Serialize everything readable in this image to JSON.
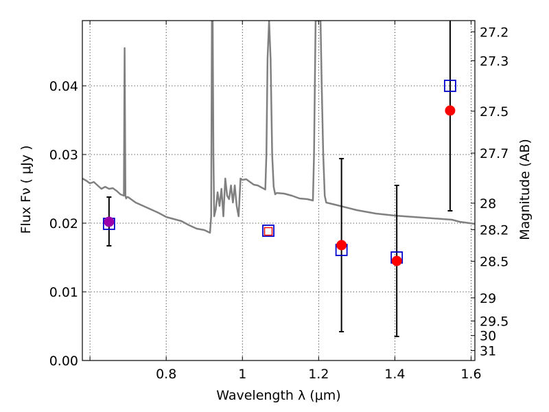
{
  "chart_data": {
    "type": "scatter",
    "title": "",
    "xlabel": "Wavelength  λ (μm)",
    "ylabel": "Flux  Fν  ( μJy )",
    "ylabel_right": "Magnitude (AB)",
    "xlim": [
      0.58,
      1.61
    ],
    "ylim": [
      0.0,
      0.0495
    ],
    "grid": true,
    "x_ticks": [
      {
        "value": 0.6,
        "label": ""
      },
      {
        "value": 0.8,
        "label": "0.8"
      },
      {
        "value": 1.0,
        "label": "1"
      },
      {
        "value": 1.2,
        "label": "1.2"
      },
      {
        "value": 1.4,
        "label": "1.4"
      },
      {
        "value": 1.6,
        "label": "1.6"
      }
    ],
    "y_ticks": [
      {
        "value": 0.0,
        "label": "0.00"
      },
      {
        "value": 0.01,
        "label": "0.01"
      },
      {
        "value": 0.02,
        "label": "0.02"
      },
      {
        "value": 0.03,
        "label": "0.03"
      },
      {
        "value": 0.04,
        "label": "0.04"
      }
    ],
    "right_ticks": [
      {
        "value": 27.2,
        "label": "27.2"
      },
      {
        "value": 27.3,
        "label": "27.3"
      },
      {
        "value": 27.5,
        "label": "27.5"
      },
      {
        "value": 27.7,
        "label": "27.7"
      },
      {
        "value": 28.0,
        "label": "28"
      },
      {
        "value": 28.2,
        "label": "28.2"
      },
      {
        "value": 28.5,
        "label": "28.5"
      },
      {
        "value": 29.0,
        "label": "29"
      },
      {
        "value": 29.5,
        "label": "29.5"
      },
      {
        "value": 30.0,
        "label": "30"
      },
      {
        "value": 31.0,
        "label": "31"
      }
    ],
    "model_spectrum": {
      "color": "#808080",
      "x": [
        0.58,
        0.59,
        0.6,
        0.61,
        0.62,
        0.63,
        0.64,
        0.65,
        0.66,
        0.67,
        0.68,
        0.689,
        0.691,
        0.693,
        0.695,
        0.697,
        0.7,
        0.72,
        0.74,
        0.76,
        0.78,
        0.8,
        0.82,
        0.84,
        0.86,
        0.88,
        0.9,
        0.915,
        0.918,
        0.92,
        0.922,
        0.924,
        0.926,
        0.93,
        0.935,
        0.94,
        0.945,
        0.95,
        0.955,
        0.96,
        0.965,
        0.97,
        0.975,
        0.98,
        0.985,
        0.99,
        0.995,
        1.0,
        1.01,
        1.02,
        1.03,
        1.04,
        1.05,
        1.06,
        1.063,
        1.066,
        1.07,
        1.074,
        1.078,
        1.082,
        1.086,
        1.09,
        1.11,
        1.13,
        1.15,
        1.17,
        1.185,
        1.188,
        1.192,
        1.195,
        1.2,
        1.205,
        1.208,
        1.212,
        1.216,
        1.22,
        1.25,
        1.3,
        1.35,
        1.4,
        1.45,
        1.5,
        1.55,
        1.57,
        1.61
      ],
      "y": [
        0.0265,
        0.0262,
        0.0258,
        0.026,
        0.0255,
        0.025,
        0.0253,
        0.025,
        0.0251,
        0.0247,
        0.0242,
        0.024,
        0.0455,
        0.024,
        0.0236,
        0.0238,
        0.0238,
        0.023,
        0.0225,
        0.022,
        0.0215,
        0.0209,
        0.0206,
        0.0203,
        0.0197,
        0.0192,
        0.019,
        0.0186,
        0.021,
        0.0495,
        0.0495,
        0.03,
        0.021,
        0.022,
        0.0245,
        0.0225,
        0.025,
        0.021,
        0.0265,
        0.024,
        0.0235,
        0.0255,
        0.023,
        0.0255,
        0.0225,
        0.021,
        0.0265,
        0.0263,
        0.0264,
        0.026,
        0.0256,
        0.0255,
        0.0252,
        0.0249,
        0.03,
        0.044,
        0.0495,
        0.044,
        0.03,
        0.0253,
        0.0242,
        0.0244,
        0.0243,
        0.024,
        0.0236,
        0.0235,
        0.0233,
        0.03,
        0.0495,
        0.0495,
        0.0495,
        0.0495,
        0.04,
        0.03,
        0.024,
        0.023,
        0.0226,
        0.0219,
        0.0214,
        0.0211,
        0.0209,
        0.0207,
        0.0205,
        0.0202,
        0.0199
      ]
    },
    "observed": {
      "color": "#ff0000",
      "marker": "circle",
      "points": [
        {
          "x": 0.65,
          "y": 0.0202,
          "err_low": 0.0035,
          "err_high": 0.0036
        },
        {
          "x": 1.068,
          "y": 0.0188,
          "err_low": 0.0,
          "err_high": 0.0
        },
        {
          "x": 1.26,
          "y": 0.0168,
          "err_low": 0.0126,
          "err_high": 0.0126
        },
        {
          "x": 1.405,
          "y": 0.0145,
          "err_low": 0.011,
          "err_high": 0.011
        },
        {
          "x": 1.545,
          "y": 0.0364,
          "err_low": 0.0146,
          "err_high": 0.0146
        }
      ]
    },
    "model_bands": {
      "color": "#0000cc",
      "marker": "square",
      "points": [
        {
          "x": 0.65,
          "y": 0.0199
        },
        {
          "x": 1.068,
          "y": 0.0189
        },
        {
          "x": 1.26,
          "y": 0.0161
        },
        {
          "x": 1.405,
          "y": 0.015
        },
        {
          "x": 1.545,
          "y": 0.04
        }
      ]
    },
    "overlap_color": "#9900aa",
    "errorbar_color": "#000000"
  }
}
